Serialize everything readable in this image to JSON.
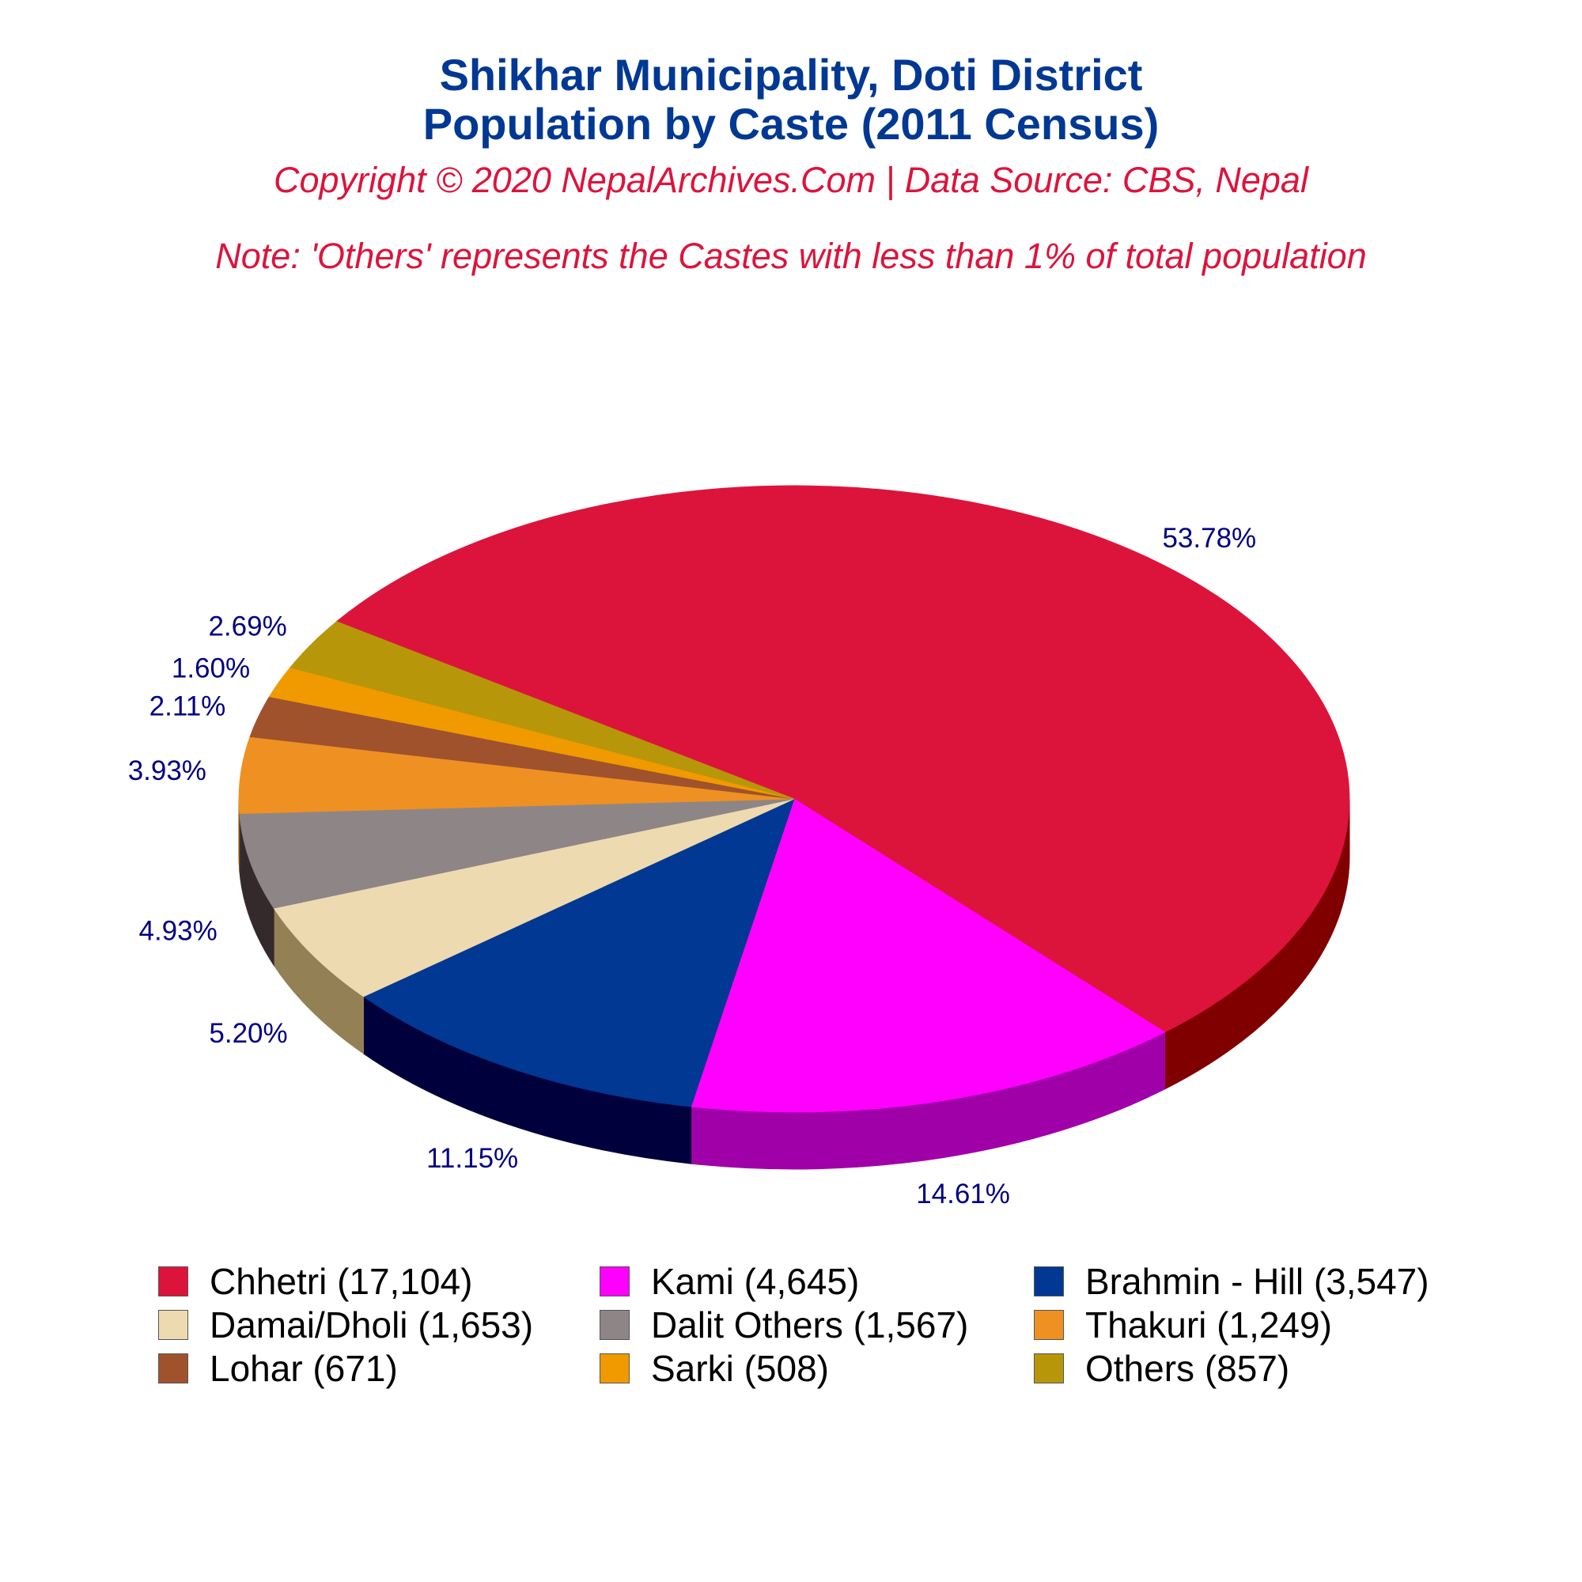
{
  "header": {
    "title_line1": "Shikhar Municipality, Doti District",
    "title_line2": "Population by Caste (2011 Census)",
    "copyright": "Copyright © 2020 NepalArchives.Com | Data Source: CBS, Nepal",
    "note": "Note: 'Others' represents the Castes with less than 1% of total population"
  },
  "colors": {
    "title": "#003893",
    "subtitle": "#DC143C",
    "data_label": "#000080"
  },
  "chart_data": {
    "type": "pie",
    "style": "3d-tilted",
    "title": "Shikhar Municipality, Doti District Population by Caste (2011 Census)",
    "legend_position": "bottom",
    "slices": [
      {
        "name": "Chhetri",
        "value": 17104,
        "percent_label": "53.78%",
        "legend_label": "Chhetri (17,104)",
        "color": "#DC143C",
        "side_color": "#800000"
      },
      {
        "name": "Kami",
        "value": 4645,
        "percent_label": "14.61%",
        "legend_label": "Kami (4,645)",
        "color": "#FF00FF",
        "side_color": "#A000A8"
      },
      {
        "name": "Brahmin - Hill",
        "value": 3547,
        "percent_label": "11.15%",
        "legend_label": "Brahmin - Hill (3,547)",
        "color": "#003893",
        "side_color": "#00003C"
      },
      {
        "name": "Damai/Dholi",
        "value": 1653,
        "percent_label": "5.20%",
        "legend_label": "Damai/Dholi (1,653)",
        "color": "#EEDAB0",
        "side_color": "#948055"
      },
      {
        "name": "Dalit Others",
        "value": 1567,
        "percent_label": "4.93%",
        "legend_label": "Dalit Others (1,567)",
        "color": "#8E8587",
        "side_color": "#342A2C"
      },
      {
        "name": "Thakuri",
        "value": 1249,
        "percent_label": "3.93%",
        "legend_label": "Thakuri (1,249)",
        "color": "#EE9122",
        "side_color": "#8A4E08"
      },
      {
        "name": "Lohar",
        "value": 671,
        "percent_label": "2.11%",
        "legend_label": "Lohar (671)",
        "color": "#A0522D",
        "side_color": "#5C2A12"
      },
      {
        "name": "Sarki",
        "value": 508,
        "percent_label": "1.60%",
        "legend_label": "Sarki (508)",
        "color": "#F09A00",
        "side_color": "#8A5800"
      },
      {
        "name": "Others",
        "value": 857,
        "percent_label": "2.69%",
        "legend_label": "Others (857)",
        "color": "#B8960A",
        "side_color": "#6A5604"
      }
    ]
  }
}
